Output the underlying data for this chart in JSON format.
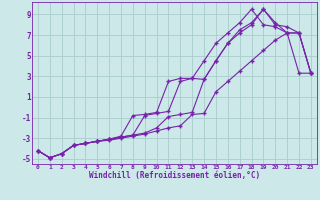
{
  "bg_color": "#cce8e8",
  "grid_color": "#aacccc",
  "line_color": "#7722aa",
  "xlabel": "Windchill (Refroidissement éolien,°C)",
  "xlim": [
    -0.5,
    23.5
  ],
  "ylim": [
    -5.5,
    10.2
  ],
  "xticks": [
    0,
    1,
    2,
    3,
    4,
    5,
    6,
    7,
    8,
    9,
    10,
    11,
    12,
    13,
    14,
    15,
    16,
    17,
    18,
    19,
    20,
    21,
    22,
    23
  ],
  "yticks": [
    -5,
    -3,
    -1,
    1,
    3,
    5,
    7,
    9
  ],
  "line1_x": [
    0,
    1,
    2,
    3,
    4,
    5,
    6,
    7,
    8,
    9,
    10,
    11,
    12,
    13,
    14,
    15,
    16,
    17,
    18,
    19,
    20,
    21,
    22,
    23
  ],
  "line1_y": [
    -4.2,
    -4.9,
    -4.5,
    -3.7,
    -3.5,
    -3.3,
    -3.2,
    -3.0,
    -2.8,
    -2.6,
    -2.3,
    -2.0,
    -1.8,
    -0.7,
    -0.6,
    1.5,
    2.5,
    3.5,
    4.5,
    5.5,
    6.5,
    7.2,
    7.2,
    3.3
  ],
  "line2_x": [
    0,
    1,
    2,
    3,
    4,
    5,
    6,
    7,
    8,
    9,
    10,
    11,
    12,
    13,
    14,
    15,
    16,
    17,
    18,
    19,
    20,
    21,
    22,
    23
  ],
  "line2_y": [
    -4.2,
    -4.9,
    -4.5,
    -3.7,
    -3.5,
    -3.3,
    -3.1,
    -2.9,
    -2.7,
    -0.8,
    -0.6,
    -0.4,
    2.5,
    2.8,
    2.7,
    4.5,
    6.2,
    7.2,
    8.0,
    9.5,
    8.0,
    7.8,
    7.2,
    3.3
  ],
  "line3_x": [
    0,
    1,
    2,
    3,
    4,
    5,
    6,
    7,
    8,
    9,
    10,
    11,
    12,
    13,
    14,
    15,
    16,
    17,
    18,
    19,
    20,
    21,
    22,
    23
  ],
  "line3_y": [
    -4.2,
    -4.9,
    -4.5,
    -3.7,
    -3.5,
    -3.3,
    -3.1,
    -2.9,
    -2.7,
    -2.5,
    -2.0,
    -0.9,
    -0.7,
    -0.5,
    2.7,
    4.5,
    6.2,
    7.5,
    8.2,
    9.5,
    8.2,
    7.2,
    3.3,
    3.3
  ],
  "line4_x": [
    0,
    1,
    2,
    3,
    4,
    5,
    6,
    7,
    8,
    9,
    10,
    11,
    12,
    13,
    14,
    15,
    16,
    17,
    18,
    19,
    20,
    21,
    22,
    23
  ],
  "line4_y": [
    -4.2,
    -4.9,
    -4.5,
    -3.7,
    -3.5,
    -3.3,
    -3.1,
    -2.8,
    -0.8,
    -0.7,
    -0.5,
    2.5,
    2.8,
    2.8,
    4.5,
    6.2,
    7.2,
    8.2,
    9.5,
    8.0,
    7.8,
    7.2,
    7.2,
    3.3
  ]
}
